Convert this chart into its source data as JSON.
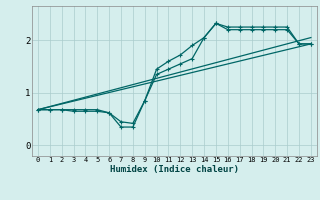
{
  "xlabel": "Humidex (Indice chaleur)",
  "bg_color": "#d5eeed",
  "grid_color": "#aacccc",
  "line_color": "#006666",
  "xlim": [
    -0.5,
    23.5
  ],
  "ylim": [
    -0.2,
    2.65
  ],
  "yticks": [
    0,
    1,
    2
  ],
  "xticks": [
    0,
    1,
    2,
    3,
    4,
    5,
    6,
    7,
    8,
    9,
    10,
    11,
    12,
    13,
    14,
    15,
    16,
    17,
    18,
    19,
    20,
    21,
    22,
    23
  ],
  "line1_x": [
    0,
    1,
    2,
    3,
    4,
    5,
    6,
    7,
    8,
    9,
    10,
    11,
    12,
    13,
    14,
    15,
    16,
    17,
    18,
    19,
    20,
    21,
    22,
    23
  ],
  "line1_y": [
    0.68,
    0.68,
    0.68,
    0.68,
    0.68,
    0.68,
    0.62,
    0.45,
    0.42,
    0.85,
    1.35,
    1.45,
    1.55,
    1.65,
    2.05,
    2.32,
    2.2,
    2.2,
    2.2,
    2.2,
    2.2,
    2.2,
    1.93,
    1.93
  ],
  "line2_x": [
    0,
    1,
    2,
    3,
    4,
    5,
    6,
    7,
    8,
    9,
    10,
    11,
    12,
    13,
    14,
    15,
    16,
    17,
    18,
    19,
    20,
    21,
    22,
    23
  ],
  "line2_y": [
    0.68,
    0.68,
    0.68,
    0.65,
    0.65,
    0.65,
    0.62,
    0.35,
    0.35,
    0.85,
    1.45,
    1.6,
    1.72,
    1.9,
    2.05,
    2.32,
    2.25,
    2.25,
    2.25,
    2.25,
    2.25,
    2.25,
    1.93,
    1.93
  ],
  "line3_x": [
    0,
    23
  ],
  "line3_y": [
    0.68,
    1.93
  ],
  "line4_x": [
    0,
    23
  ],
  "line4_y": [
    0.68,
    2.05
  ]
}
